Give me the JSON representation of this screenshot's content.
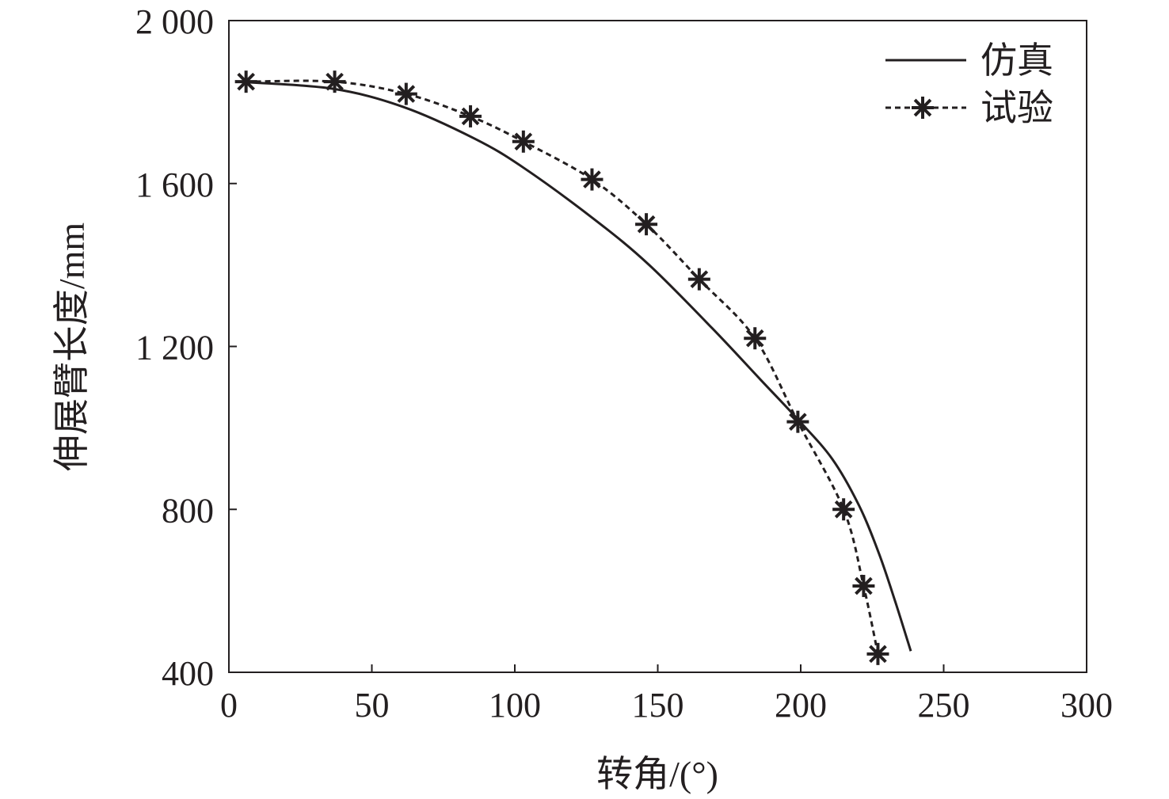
{
  "chart_data": {
    "type": "line",
    "title": "",
    "xlabel": "转角/(°)",
    "ylabel": "伸展臂长度/mm",
    "xlim": [
      0,
      300
    ],
    "ylim": [
      400,
      2000
    ],
    "xticks": [
      0,
      50,
      100,
      150,
      200,
      250,
      300
    ],
    "xtick_labels": [
      "0",
      "50",
      "100",
      "150",
      "200",
      "250",
      "300"
    ],
    "yticks": [
      400,
      800,
      1200,
      1600,
      2000
    ],
    "ytick_labels": [
      "400",
      "800",
      "1 200",
      "1 600",
      "2 000"
    ],
    "grid": false,
    "legend_position": "top-right",
    "series": [
      {
        "name": "仿真",
        "style": "solid",
        "marker": "none",
        "x": [
          3,
          36,
          61,
          86,
          103,
          128,
          147,
          169,
          186,
          199,
          211,
          220.5,
          227.4,
          233,
          238.5
        ],
        "y": [
          1850,
          1833,
          1788,
          1710,
          1639,
          1511,
          1400,
          1245,
          1118,
          1021,
          924,
          808,
          691,
          575,
          452
        ]
      },
      {
        "name": "试验",
        "style": "dashed",
        "marker": "asterisk",
        "x": [
          6,
          37,
          62,
          84.5,
          103,
          127,
          146,
          164.5,
          184,
          199,
          215,
          222,
          227
        ],
        "y": [
          1850,
          1850,
          1820,
          1765,
          1703,
          1610,
          1500,
          1365,
          1220,
          1015,
          800,
          612,
          445
        ]
      }
    ],
    "color": "#231f20"
  }
}
